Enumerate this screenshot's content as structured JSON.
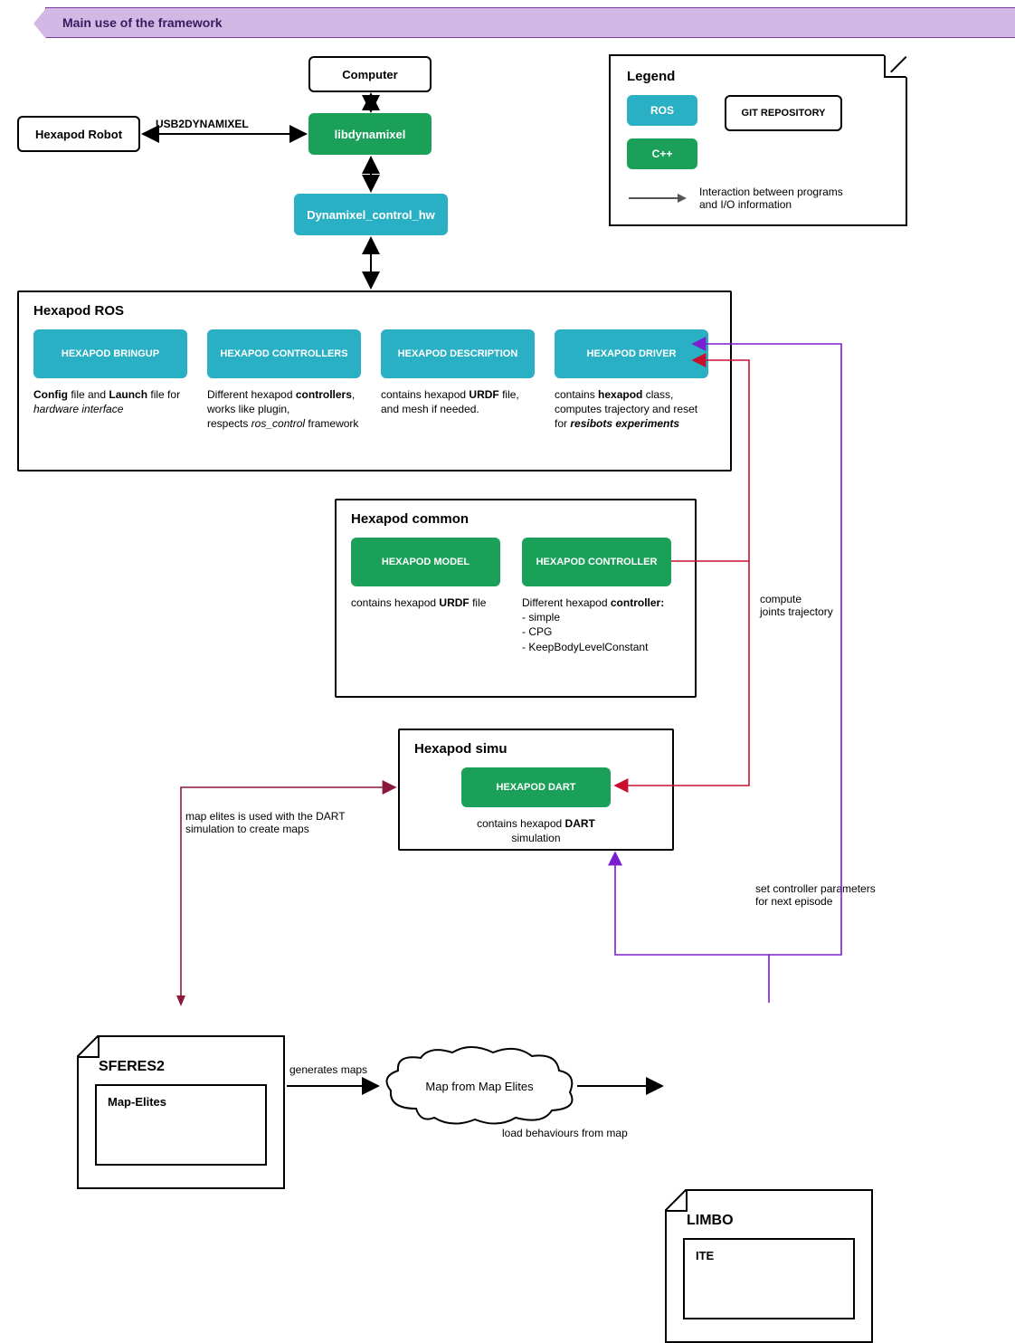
{
  "colors": {
    "ros": "#29b0c4",
    "cpp": "#1aa059",
    "banner_bg": "#d3b8e6",
    "banner_border": "#7a3c9e",
    "arrow_black": "#000000",
    "arrow_red": "#c8102e",
    "arrow_purple": "#7a1fcf",
    "arrow_darkred": "#8b1a3a",
    "arrow_gray": "#555555",
    "background": "#ffffff"
  },
  "banner": {
    "text": "Main use of the framework"
  },
  "top": {
    "computer": "Computer",
    "hexapod_robot": "Hexapod Robot",
    "usb2dyn": "USB2DYNAMIXEL",
    "libdynamixel": "libdynamixel",
    "dyn_control_hw": "Dynamixel_control_hw"
  },
  "legend": {
    "title": "Legend",
    "ros": "ROS",
    "cpp": "C++",
    "git": "GIT REPOSITORY",
    "interaction": "Interaction between programs and I/O information"
  },
  "hexapod_ros": {
    "title": "Hexapod ROS",
    "items": [
      {
        "label": "HEXAPOD BRINGUP",
        "desc_html": "<b>Config</b> file and <b>Launch</b> file for <i>hardware interface</i>"
      },
      {
        "label": "HEXAPOD CONTROLLERS",
        "desc_html": "Different hexapod <b>controllers</b>, works like plugin,<br>respects <i>ros_control</i> framework"
      },
      {
        "label": "HEXAPOD DESCRIPTION",
        "desc_html": "contains hexapod <b>URDF</b> file, and mesh if needed."
      },
      {
        "label": "HEXAPOD DRIVER",
        "desc_html": "contains <b>hexapod</b> class, computes trajectory and reset for <b><i>resibots experiments</i></b>"
      }
    ]
  },
  "hexapod_common": {
    "title": "Hexapod common",
    "model": {
      "label": "HEXAPOD MODEL",
      "desc_html": "contains hexapod <b>URDF</b> file"
    },
    "controller": {
      "label": "HEXAPOD CONTROLLER",
      "desc_html": "Different hexapod <b>controller:</b><br>- simple<br>- CPG<br>- KeepBodyLevelConstant"
    }
  },
  "hexapod_simu": {
    "title": "Hexapod simu",
    "dart": {
      "label": "HEXAPOD DART",
      "desc_html": "contains hexapod <b>DART</b> simulation"
    }
  },
  "edge_labels": {
    "compute_joints": "compute<br>joints trajectory",
    "set_controller": "set controller parameters<br>for next episode",
    "map_elites_dart": "map elites is used with the DART simulation to create maps",
    "generates_maps": "generates maps",
    "load_behaviours": "load behaviours from map"
  },
  "sferes": {
    "title": "SFERES2",
    "inner": "Map-Elites"
  },
  "limbo": {
    "title": "LIMBO",
    "inner": "ITE"
  },
  "cloud": {
    "text": "Map from Map Elites"
  }
}
